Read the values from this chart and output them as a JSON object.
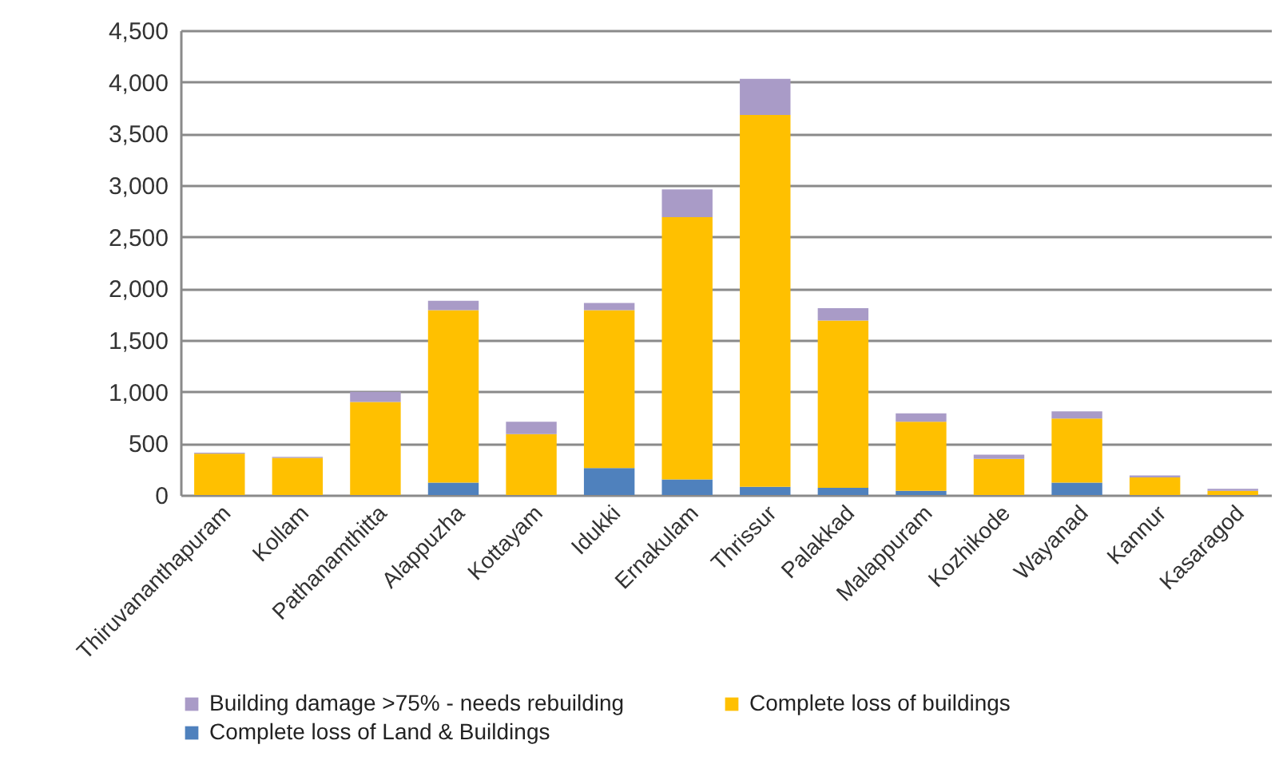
{
  "chart_data": {
    "type": "bar",
    "stacked": true,
    "categories": [
      "Thiruvananthapuram",
      "Kollam",
      "Pathanamthitta",
      "Alappuzha",
      "Kottayam",
      "Idukki",
      "Ernakulam",
      "Thrissur",
      "Palakkad",
      "Malappuram",
      "Kozhikode",
      "Wayanad",
      "Kannur",
      "Kasaragod"
    ],
    "series": [
      {
        "name": "Complete loss of Land & Buildings",
        "color": "#4f81bd",
        "values": [
          0,
          0,
          0,
          120,
          0,
          260,
          150,
          80,
          70,
          40,
          0,
          120,
          0,
          0
        ]
      },
      {
        "name": "Complete loss of buildings",
        "color": "#ffc000",
        "values": [
          400,
          360,
          900,
          1670,
          590,
          1530,
          2540,
          3600,
          1620,
          670,
          350,
          620,
          170,
          40
        ]
      },
      {
        "name": "Building damage >75% - needs rebuilding",
        "color": "#a99bc7",
        "values": [
          10,
          10,
          100,
          90,
          120,
          70,
          270,
          350,
          120,
          80,
          40,
          70,
          20,
          20
        ]
      }
    ],
    "ylim": [
      0,
      4500
    ],
    "yticks": [
      {
        "value": 0,
        "label": "0"
      },
      {
        "value": 500,
        "label": "500"
      },
      {
        "value": 1000,
        "label": "1,000"
      },
      {
        "value": 1500,
        "label": "1,500"
      },
      {
        "value": 2000,
        "label": "2,000"
      },
      {
        "value": 2500,
        "label": "2,500"
      },
      {
        "value": 3000,
        "label": "3,000"
      },
      {
        "value": 3500,
        "label": "3,500"
      },
      {
        "value": 4000,
        "label": "4,000"
      },
      {
        "value": 4500,
        "label": "4,500"
      }
    ],
    "grid": "y",
    "legend": "bottom"
  }
}
